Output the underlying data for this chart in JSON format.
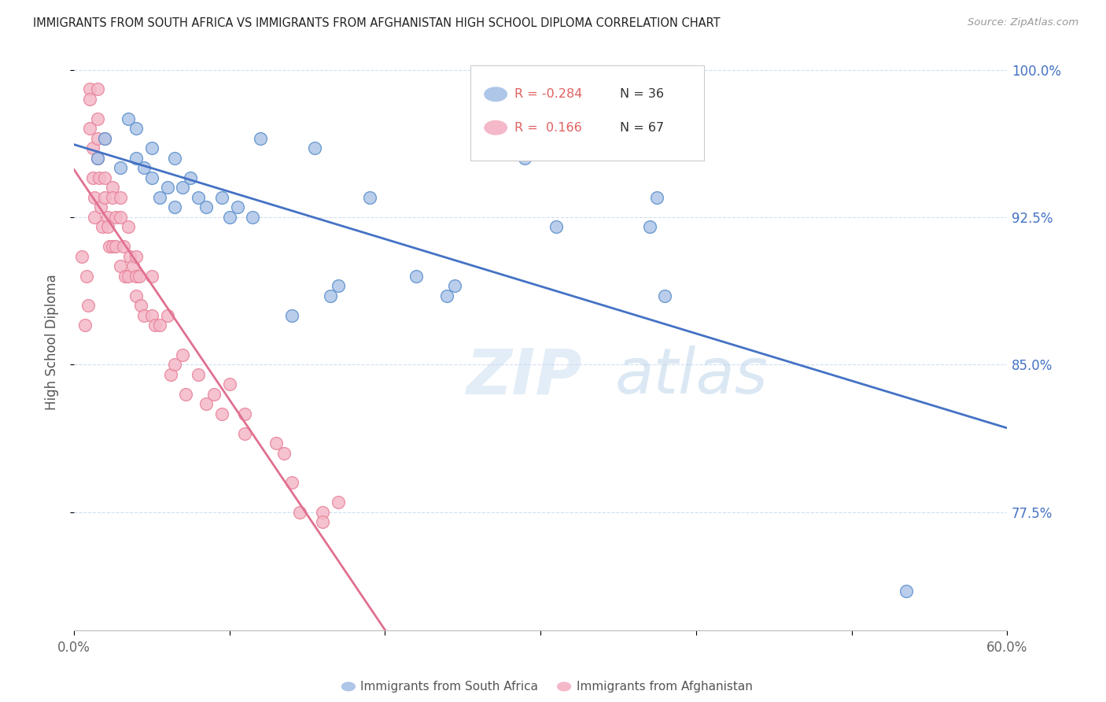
{
  "title": "IMMIGRANTS FROM SOUTH AFRICA VS IMMIGRANTS FROM AFGHANISTAN HIGH SCHOOL DIPLOMA CORRELATION CHART",
  "source": "Source: ZipAtlas.com",
  "ylabel": "High School Diploma",
  "watermark": "ZIPatlas",
  "legend_r_sa": "R = -0.284",
  "legend_n_sa": "N = 36",
  "legend_r_af": "R =  0.166",
  "legend_n_af": "N = 67",
  "legend_title_sa": "Immigrants from South Africa",
  "legend_title_af": "Immigrants from Afghanistan",
  "xlim": [
    0.0,
    0.6
  ],
  "ylim": [
    0.715,
    1.008
  ],
  "yticks": [
    0.775,
    0.85,
    0.925,
    1.0
  ],
  "ytick_labels": [
    "77.5%",
    "85.0%",
    "92.5%",
    "100.0%"
  ],
  "xticks": [
    0.0,
    0.1,
    0.2,
    0.3,
    0.4,
    0.5,
    0.6
  ],
  "xtick_labels": [
    "0.0%",
    "",
    "",
    "",
    "",
    "",
    "60.0%"
  ],
  "south_africa_color": "#aec6e8",
  "afghanistan_color": "#f4b8c8",
  "south_africa_edge_color": "#5b8fcc",
  "afghanistan_edge_color": "#e8849a",
  "south_africa_line_color": "#4472c4",
  "afghanistan_line_color": "#e07090",
  "dashed_line_color": "#f0c0cc",
  "background_color": "#ffffff",
  "grid_color": "#d0dff0",
  "right_axis_color": "#4472c4",
  "south_africa_x": [
    0.015,
    0.02,
    0.03,
    0.035,
    0.04,
    0.04,
    0.045,
    0.05,
    0.05,
    0.055,
    0.06,
    0.065,
    0.065,
    0.07,
    0.075,
    0.08,
    0.085,
    0.095,
    0.1,
    0.105,
    0.115,
    0.12,
    0.14,
    0.155,
    0.165,
    0.17,
    0.19,
    0.22,
    0.24,
    0.245,
    0.29,
    0.31,
    0.37,
    0.375,
    0.38,
    0.535
  ],
  "south_africa_y": [
    0.955,
    0.965,
    0.95,
    0.975,
    0.955,
    0.97,
    0.95,
    0.945,
    0.96,
    0.935,
    0.94,
    0.955,
    0.93,
    0.94,
    0.945,
    0.935,
    0.93,
    0.935,
    0.925,
    0.93,
    0.925,
    0.965,
    0.875,
    0.96,
    0.885,
    0.89,
    0.935,
    0.895,
    0.885,
    0.89,
    0.955,
    0.92,
    0.92,
    0.935,
    0.885,
    0.735
  ],
  "afghanistan_x": [
    0.005,
    0.007,
    0.008,
    0.009,
    0.01,
    0.01,
    0.01,
    0.012,
    0.012,
    0.013,
    0.013,
    0.015,
    0.015,
    0.015,
    0.015,
    0.016,
    0.017,
    0.018,
    0.02,
    0.02,
    0.02,
    0.022,
    0.022,
    0.023,
    0.025,
    0.025,
    0.025,
    0.027,
    0.027,
    0.03,
    0.03,
    0.03,
    0.032,
    0.033,
    0.035,
    0.035,
    0.036,
    0.038,
    0.04,
    0.04,
    0.04,
    0.042,
    0.043,
    0.045,
    0.05,
    0.05,
    0.052,
    0.055,
    0.06,
    0.062,
    0.065,
    0.07,
    0.072,
    0.08,
    0.085,
    0.09,
    0.095,
    0.1,
    0.11,
    0.11,
    0.13,
    0.135,
    0.14,
    0.145,
    0.16,
    0.16,
    0.17
  ],
  "afghanistan_y": [
    0.905,
    0.87,
    0.895,
    0.88,
    0.99,
    0.985,
    0.97,
    0.96,
    0.945,
    0.935,
    0.925,
    0.99,
    0.975,
    0.965,
    0.955,
    0.945,
    0.93,
    0.92,
    0.965,
    0.945,
    0.935,
    0.925,
    0.92,
    0.91,
    0.94,
    0.935,
    0.91,
    0.925,
    0.91,
    0.935,
    0.925,
    0.9,
    0.91,
    0.895,
    0.92,
    0.895,
    0.905,
    0.9,
    0.905,
    0.895,
    0.885,
    0.895,
    0.88,
    0.875,
    0.895,
    0.875,
    0.87,
    0.87,
    0.875,
    0.845,
    0.85,
    0.855,
    0.835,
    0.845,
    0.83,
    0.835,
    0.825,
    0.84,
    0.825,
    0.815,
    0.81,
    0.805,
    0.79,
    0.775,
    0.775,
    0.77,
    0.78
  ]
}
